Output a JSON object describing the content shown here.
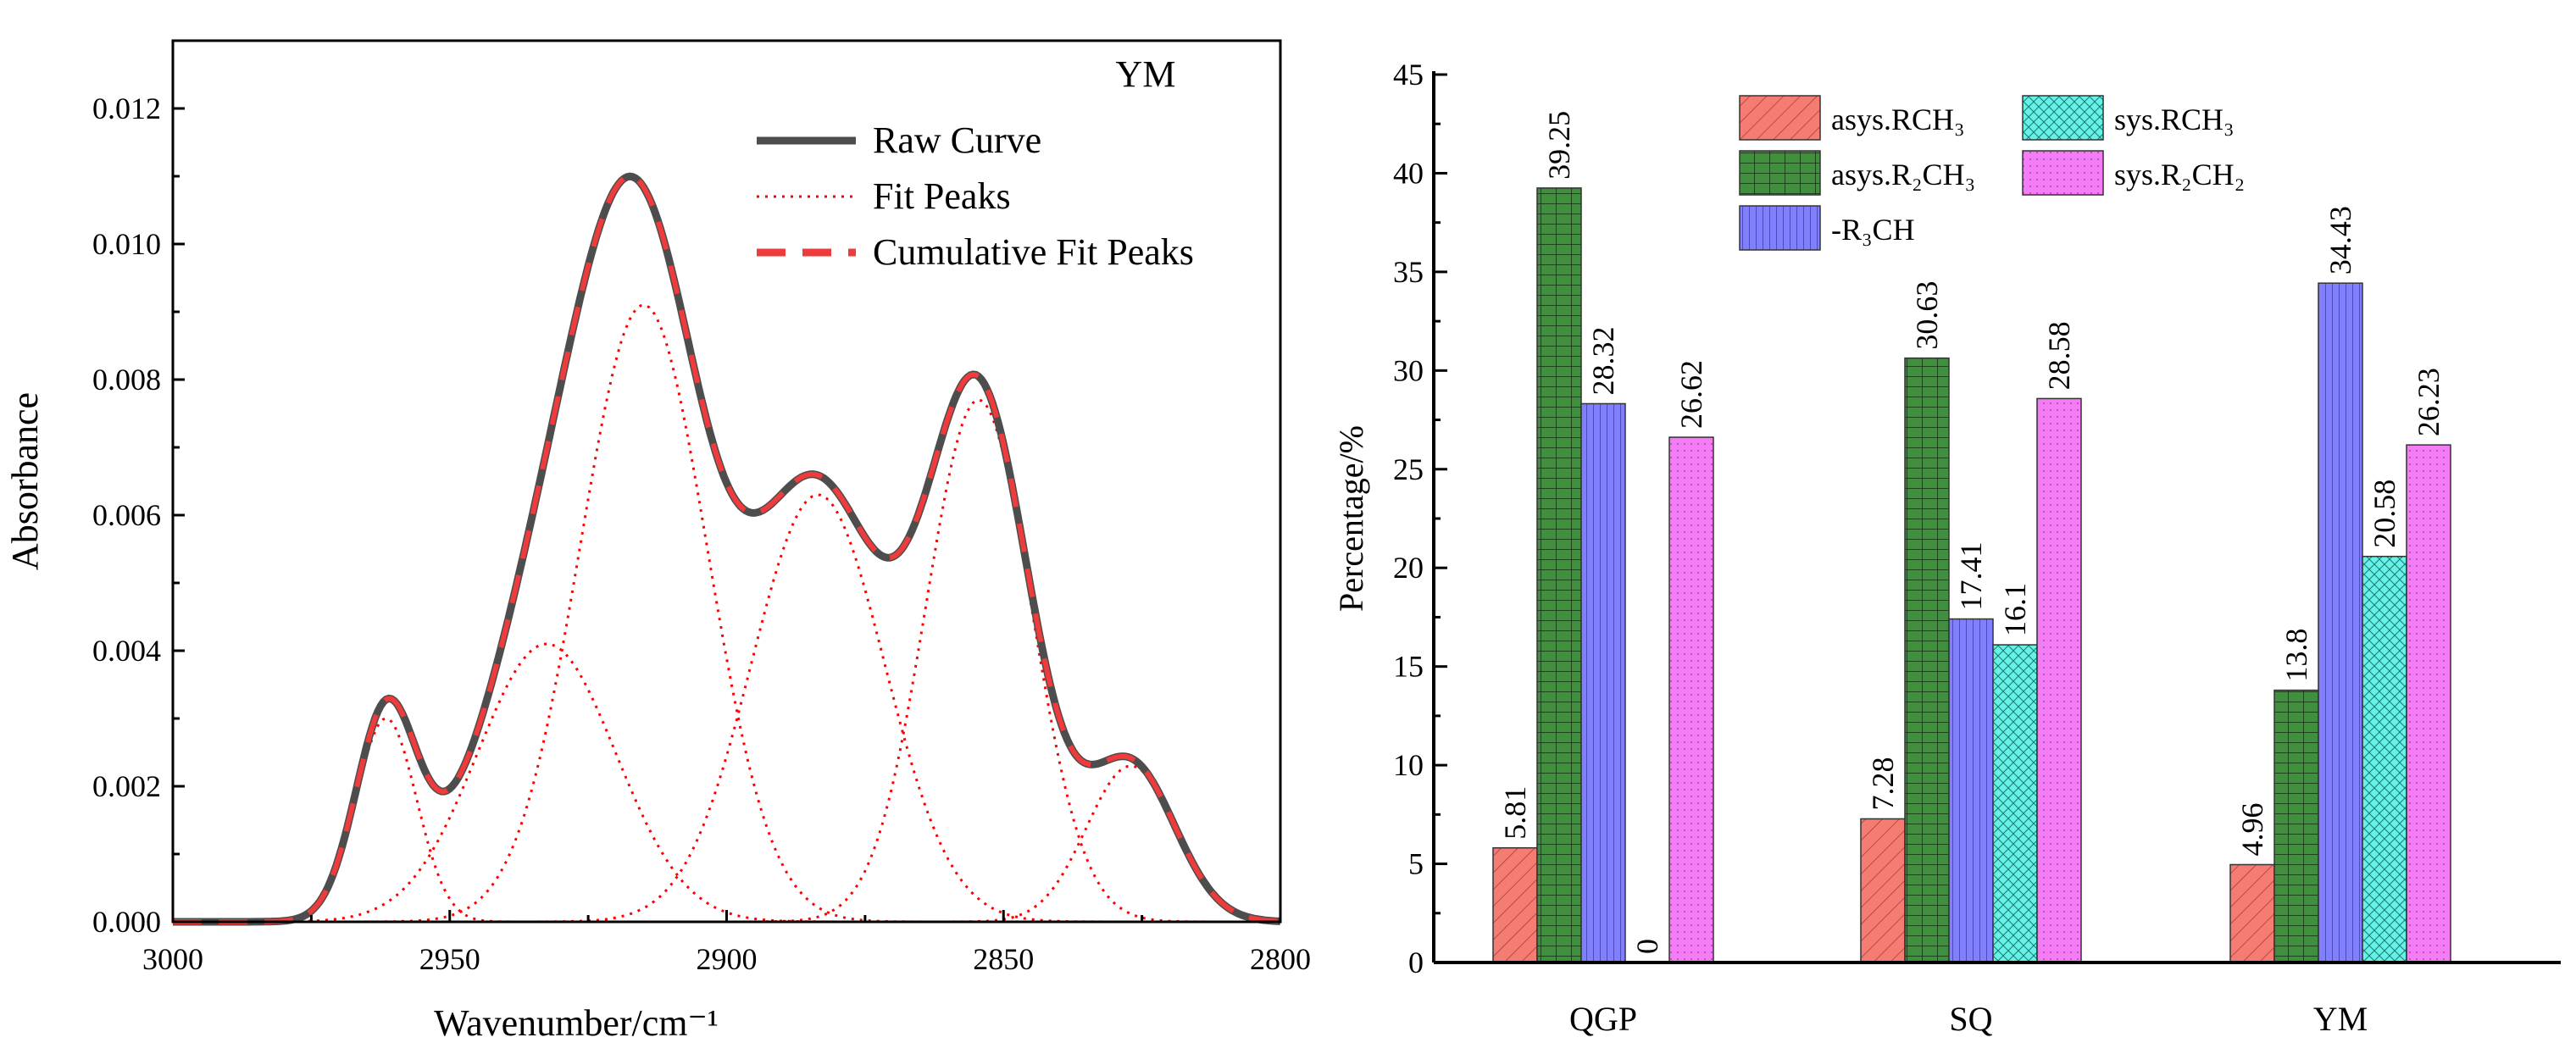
{
  "chart_data": [
    {
      "type": "line",
      "title": "",
      "annotation": "YM",
      "xlabel": "Wavenumber/cm⁻¹",
      "ylabel": "Absorbance",
      "xlim": [
        3000,
        2800
      ],
      "ylim": [
        0,
        0.013
      ],
      "xticks": [
        "3000",
        "2950",
        "2900",
        "2850",
        "2800"
      ],
      "xtick_values": [
        3000,
        2950,
        2900,
        2850,
        2800
      ],
      "yticks": [
        "0.000",
        "0.002",
        "0.004",
        "0.006",
        "0.008",
        "0.010",
        "0.012"
      ],
      "ytick_values": [
        0,
        0.002,
        0.004,
        0.006,
        0.008,
        0.01,
        0.012
      ],
      "legend": [
        "Raw Curve",
        "Fit Peaks",
        "Cumulative Fit Peaks"
      ],
      "legend_position": "top-right",
      "colors": {
        "raw": "#4d4d4d",
        "fit": "#ff0000",
        "cumulative": "#ee3b3b"
      },
      "fit_peaks": [
        {
          "center": 2961.5,
          "height": 0.003,
          "sigma": 5.5
        },
        {
          "center": 2932.5,
          "height": 0.0041,
          "sigma": 12.5
        },
        {
          "center": 2915.0,
          "height": 0.0091,
          "sigma": 11.5
        },
        {
          "center": 2883.5,
          "height": 0.0063,
          "sigma": 12.0
        },
        {
          "center": 2854.5,
          "height": 0.0077,
          "sigma": 9.5
        },
        {
          "center": 2827.0,
          "height": 0.0023,
          "sigma": 8.0
        }
      ]
    },
    {
      "type": "bar",
      "title": "",
      "xlabel": "",
      "ylabel": "Percentage/%",
      "ylim": [
        0,
        45
      ],
      "yticks": [
        "0",
        "5",
        "10",
        "15",
        "20",
        "25",
        "30",
        "35",
        "40",
        "45"
      ],
      "ytick_values": [
        0,
        5,
        10,
        15,
        20,
        25,
        30,
        35,
        40,
        45
      ],
      "categories": [
        "QGP",
        "SQ",
        "YM"
      ],
      "legend_position": "top",
      "series": [
        {
          "name": "asys.RCH₃",
          "values": [
            5.81,
            7.28,
            4.96
          ],
          "labels": [
            "5.81",
            "7.28",
            "4.96"
          ],
          "color": "#f47c72",
          "pattern": "diagonal"
        },
        {
          "name": "asys.R₂CH₃",
          "values": [
            39.25,
            30.63,
            13.8
          ],
          "labels": [
            "39.25",
            "30.63",
            "13.8"
          ],
          "color": "#3f8f3f",
          "pattern": "grid"
        },
        {
          "name": "-R₃CH",
          "values": [
            28.32,
            17.41,
            34.43
          ],
          "labels": [
            "28.32",
            "17.41",
            "34.43"
          ],
          "color": "#8080ff",
          "pattern": "vertical"
        },
        {
          "name": "sys.RCH₃",
          "values": [
            0,
            16.1,
            20.58
          ],
          "labels": [
            "0",
            "16.1",
            "20.58"
          ],
          "color": "#66f2e6",
          "pattern": "crosshatch"
        },
        {
          "name": "sys.R₂CH₂",
          "values": [
            26.62,
            28.58,
            26.23
          ],
          "labels": [
            "26.62",
            "28.58",
            "26.23"
          ],
          "color": "#f47cf4",
          "pattern": "dots"
        }
      ]
    }
  ]
}
